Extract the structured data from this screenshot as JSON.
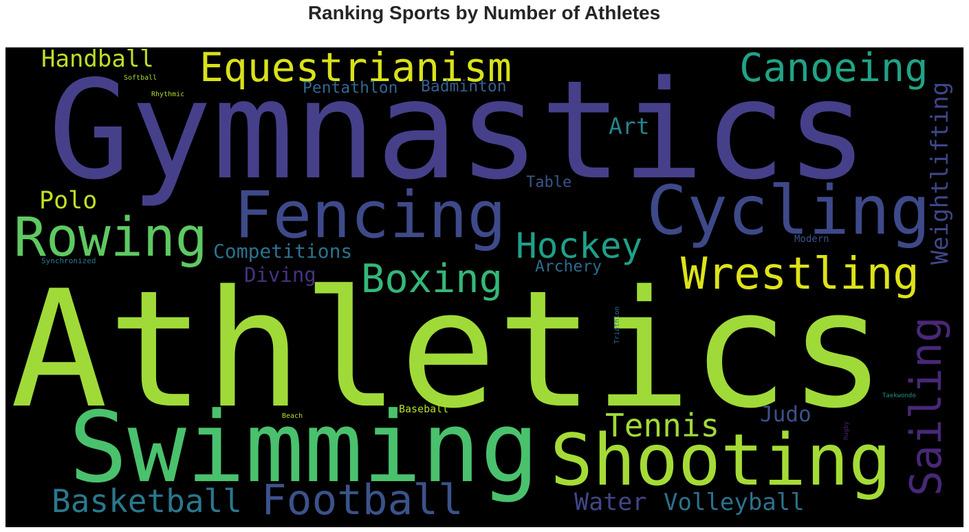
{
  "chart_data": {
    "type": "wordcloud",
    "title": "Ranking Sports by Number of Athletes",
    "background": "#000000",
    "words": [
      {
        "text": "Gymnastics",
        "color": "#46408a"
      },
      {
        "text": "Athletics",
        "color": "#a0da39"
      },
      {
        "text": "Swimming",
        "color": "#4ac16d"
      },
      {
        "text": "Shooting",
        "color": "#a5db36"
      },
      {
        "text": "Fencing",
        "color": "#3e4a89"
      },
      {
        "text": "Cycling",
        "color": "#3e4989"
      },
      {
        "text": "Rowing",
        "color": "#5ec962"
      },
      {
        "text": "Equestrianism",
        "color": "#d8e219"
      },
      {
        "text": "Canoeing",
        "color": "#20a386"
      },
      {
        "text": "Handball",
        "color": "#bddf26"
      },
      {
        "text": "Softball",
        "color": "#a2da37"
      },
      {
        "text": "Rhythmic",
        "color": "#b0dd2f"
      },
      {
        "text": "Pentathlon",
        "color": "#31688e"
      },
      {
        "text": "Badminton",
        "color": "#35608d"
      },
      {
        "text": "Art",
        "color": "#26828e"
      },
      {
        "text": "Table",
        "color": "#39568c"
      },
      {
        "text": "Weightlifting",
        "color": "#3f4788"
      },
      {
        "text": "Polo",
        "color": "#c2df23"
      },
      {
        "text": "Hockey",
        "color": "#1fa088"
      },
      {
        "text": "Competitions",
        "color": "#2c728e"
      },
      {
        "text": "Synchronized",
        "color": "#2a788e"
      },
      {
        "text": "Modern",
        "color": "#3b518b"
      },
      {
        "text": "Wrestling",
        "color": "#dde318"
      },
      {
        "text": "Boxing",
        "color": "#35b779"
      },
      {
        "text": "Diving",
        "color": "#46327e"
      },
      {
        "text": "Archery",
        "color": "#2f6c8e"
      },
      {
        "text": "Sailing",
        "color": "#482878"
      },
      {
        "text": "Triathlon",
        "color": "#2c718e"
      },
      {
        "text": "Taekwondo",
        "color": "#21918c"
      },
      {
        "text": "Rugby",
        "color": "#482475"
      },
      {
        "text": "Beach",
        "color": "#bddf26"
      },
      {
        "text": "Baseball",
        "color": "#b5de2b"
      },
      {
        "text": "Tennis",
        "color": "#9fda3a"
      },
      {
        "text": "Judo",
        "color": "#3b528b"
      },
      {
        "text": "Basketball",
        "color": "#2a788e"
      },
      {
        "text": "Football",
        "color": "#3b528b"
      },
      {
        "text": "Water",
        "color": "#404688"
      },
      {
        "text": "Volleyball",
        "color": "#2c728e"
      }
    ]
  }
}
